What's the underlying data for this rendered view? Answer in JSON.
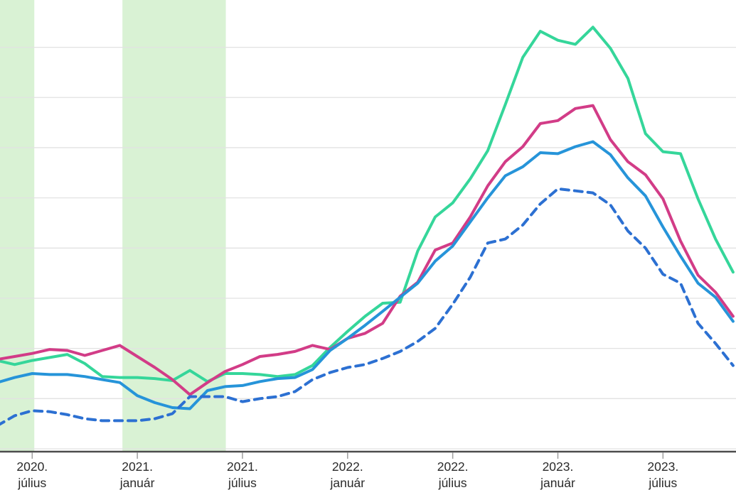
{
  "chart_data": {
    "type": "line",
    "title": "",
    "x_unit": "month",
    "months": [
      "2020-05",
      "2020-06",
      "2020-07",
      "2020-08",
      "2020-09",
      "2020-10",
      "2020-11",
      "2020-12",
      "2021-01",
      "2021-02",
      "2021-03",
      "2021-04",
      "2021-05",
      "2021-06",
      "2021-07",
      "2021-08",
      "2021-09",
      "2021-10",
      "2021-11",
      "2021-12",
      "2022-01",
      "2022-02",
      "2022-03",
      "2022-04",
      "2022-05",
      "2022-06",
      "2022-07",
      "2022-08",
      "2022-09",
      "2022-10",
      "2022-11",
      "2022-12",
      "2023-01",
      "2023-02",
      "2023-03",
      "2023-04",
      "2023-05",
      "2023-06",
      "2023-07",
      "2023-08",
      "2023-09",
      "2023-10",
      "2023-11"
    ],
    "series": [
      {
        "name": "green-solid",
        "color": "#35d69a",
        "style": "solid",
        "values": [
          8.8,
          8.4,
          8.8,
          9.1,
          9.4,
          8.5,
          7.2,
          7.1,
          7.1,
          7.0,
          6.8,
          7.8,
          6.7,
          7.5,
          7.5,
          7.4,
          7.2,
          7.4,
          8.3,
          10.1,
          11.7,
          13.2,
          14.5,
          14.6,
          19.7,
          23.1,
          24.5,
          26.9,
          29.7,
          34.3,
          39.0,
          41.6,
          40.7,
          40.3,
          42.0,
          39.9,
          36.9,
          31.4,
          29.6,
          29.4,
          24.9,
          20.9,
          17.6
        ]
      },
      {
        "name": "pink-solid",
        "color": "#d23c87",
        "style": "solid",
        "values": [
          8.9,
          9.2,
          9.5,
          9.9,
          9.8,
          9.3,
          9.8,
          10.3,
          9.2,
          8.1,
          6.9,
          5.4,
          6.6,
          7.7,
          8.4,
          9.2,
          9.4,
          9.7,
          10.3,
          9.9,
          11.0,
          11.5,
          12.5,
          15.2,
          16.6,
          19.8,
          20.5,
          23.1,
          26.2,
          28.6,
          30.1,
          32.4,
          32.7,
          33.9,
          34.2,
          30.8,
          28.6,
          27.3,
          24.9,
          20.7,
          17.3,
          15.6,
          13.2
        ]
      },
      {
        "name": "blue-solid",
        "color": "#2694d9",
        "style": "solid",
        "values": [
          6.6,
          7.1,
          7.5,
          7.4,
          7.4,
          7.2,
          6.9,
          6.6,
          5.3,
          4.6,
          4.1,
          4.0,
          5.8,
          6.2,
          6.3,
          6.7,
          7.0,
          7.1,
          7.9,
          9.8,
          11.0,
          12.3,
          13.7,
          15.1,
          16.5,
          18.7,
          20.2,
          22.6,
          25.0,
          27.2,
          28.1,
          29.5,
          29.4,
          30.1,
          30.6,
          29.3,
          27.0,
          25.2,
          22.1,
          19.2,
          16.5,
          15.1,
          12.7
        ]
      },
      {
        "name": "blue-dashed",
        "color": "#2c70d2",
        "style": "dashed",
        "values": [
          2.3,
          3.3,
          3.8,
          3.7,
          3.4,
          3.0,
          2.8,
          2.8,
          2.8,
          3.0,
          3.5,
          5.2,
          5.2,
          5.2,
          4.7,
          5.0,
          5.2,
          5.7,
          6.9,
          7.6,
          8.1,
          8.4,
          9.0,
          9.7,
          10.7,
          12.0,
          14.4,
          17.1,
          20.5,
          20.9,
          22.3,
          24.4,
          25.9,
          25.7,
          25.5,
          24.3,
          21.7,
          20.0,
          17.4,
          16.5,
          12.5,
          10.5,
          8.3
        ]
      }
    ],
    "x_ticks": [
      {
        "month_index": 2,
        "year_label": "2020.",
        "month_label": "július"
      },
      {
        "month_index": 8,
        "year_label": "2021.",
        "month_label": "január"
      },
      {
        "month_index": 14,
        "year_label": "2021.",
        "month_label": "július"
      },
      {
        "month_index": 20,
        "year_label": "2022.",
        "month_label": "január"
      },
      {
        "month_index": 26,
        "year_label": "2022.",
        "month_label": "július"
      },
      {
        "month_index": 32,
        "year_label": "2023.",
        "month_label": "január"
      },
      {
        "month_index": 38,
        "year_label": "2023.",
        "month_label": "július"
      }
    ],
    "highlight_bands": [
      {
        "from_month": -0.5,
        "to_month": 2.12
      },
      {
        "from_month": 7.15,
        "to_month": 13.05
      }
    ],
    "ylim": [
      0,
      45
    ],
    "grid_step": 5,
    "grid": true,
    "legend_position": "none"
  },
  "colors": {
    "background": "#ffffff",
    "highlight_band": "#d9f2d4",
    "gridline": "#e2e2e2",
    "axis_line": "#4d4d4d",
    "tick_mark": "#9e9e9e",
    "tick_label": "#2b2b2b"
  }
}
